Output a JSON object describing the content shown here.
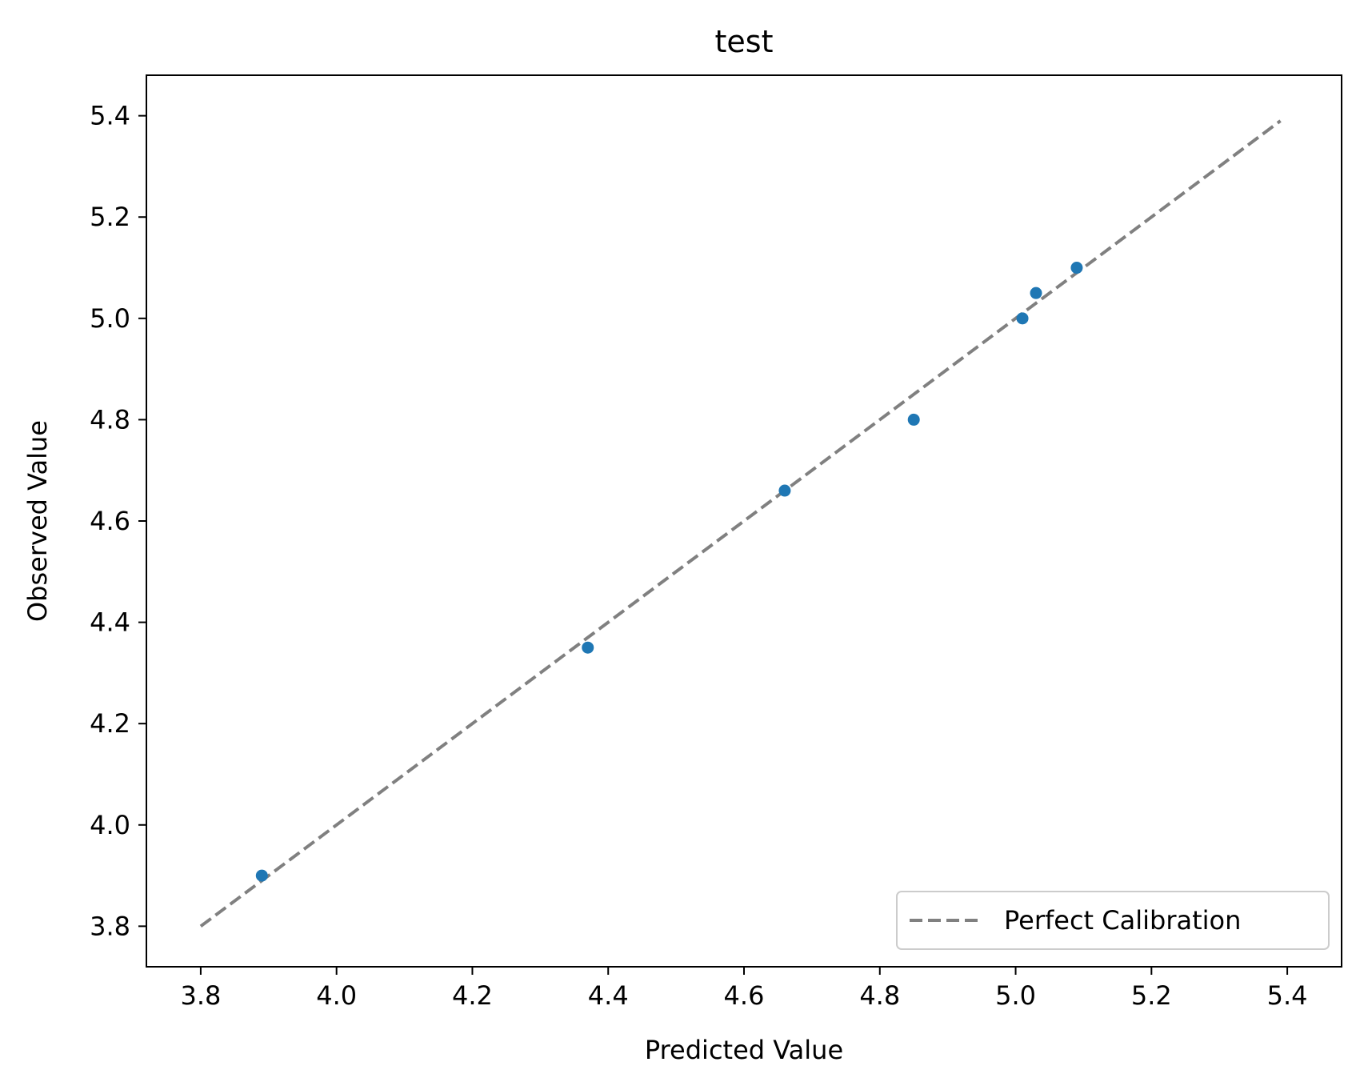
{
  "chart_data": {
    "type": "scatter",
    "title": "test",
    "xlabel": "Predicted Value",
    "ylabel": "Observed Value",
    "xlim": [
      3.72,
      5.48
    ],
    "ylim": [
      3.72,
      5.48
    ],
    "xticks": [
      "3.8",
      "4.0",
      "4.2",
      "4.4",
      "4.6",
      "4.8",
      "5.0",
      "5.2",
      "5.4"
    ],
    "yticks": [
      "3.8",
      "4.0",
      "4.2",
      "4.4",
      "4.6",
      "4.8",
      "5.0",
      "5.2",
      "5.4"
    ],
    "grid": false,
    "legend_position": "lower-right",
    "series": [
      {
        "kind": "points",
        "color": "#1f77b4",
        "points": [
          {
            "x": 3.89,
            "y": 3.9
          },
          {
            "x": 4.37,
            "y": 4.35
          },
          {
            "x": 4.66,
            "y": 4.66
          },
          {
            "x": 4.85,
            "y": 4.8
          },
          {
            "x": 5.01,
            "y": 5.0
          },
          {
            "x": 5.03,
            "y": 5.05
          },
          {
            "x": 5.09,
            "y": 5.1
          }
        ]
      },
      {
        "kind": "line",
        "name": "Perfect Calibration",
        "style": "dashed",
        "color": "#808080",
        "points": [
          {
            "x": 3.8,
            "y": 3.8
          },
          {
            "x": 5.39,
            "y": 5.39
          }
        ]
      }
    ]
  }
}
